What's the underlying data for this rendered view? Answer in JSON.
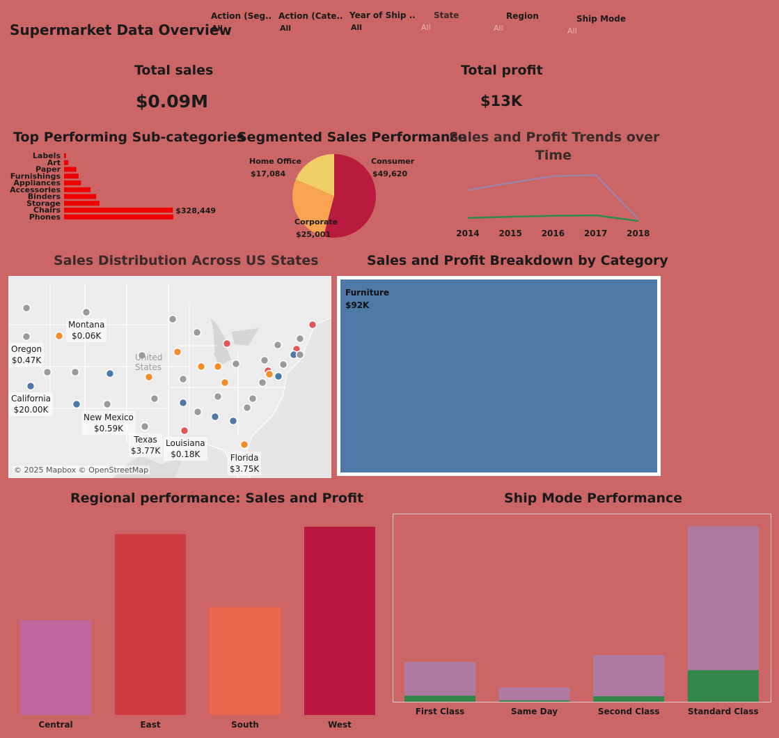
{
  "header": {
    "title": "Supermarket Data Overview"
  },
  "filters": [
    {
      "label": "Action (Seg..",
      "value": "All",
      "dim": false
    },
    {
      "label": "Action (Cate..",
      "value": "All",
      "dim": false
    },
    {
      "label": "Year of Ship ..",
      "value": "All",
      "dim": false
    },
    {
      "label": "State",
      "value": "All",
      "dim": true
    },
    {
      "label": "Region",
      "value": "All",
      "dim": true
    },
    {
      "label": "Ship Mode",
      "value": "All",
      "dim": true
    }
  ],
  "kpis": {
    "sales": {
      "title": "Total sales",
      "value": "$0.09M"
    },
    "profit": {
      "title": "Total profit",
      "value": "$13K"
    }
  },
  "titles": {
    "subcat": "Top Performing Sub-categories",
    "segment": "Segmented Sales Performance",
    "trend_line1": "Sales and Profit Trends over",
    "trend_line2": "Time",
    "map": "Sales Distribution Across US States",
    "treemap": "Sales and  Profit Breakdown by Category",
    "region": "Regional performance: Sales and Profit",
    "shipmode": "Ship Mode Performance"
  },
  "chart_data": [
    {
      "id": "subcat",
      "type": "bar",
      "orientation": "horizontal",
      "categories": [
        "Labels",
        "Art",
        "Paper",
        "Furnishings",
        "Appliances",
        "Accessories",
        "Binders",
        "Storage",
        "Chairs",
        "Phones"
      ],
      "values": [
        6000,
        13000,
        37000,
        44000,
        51000,
        80000,
        97000,
        107000,
        328449,
        330000
      ],
      "data_labels": {
        "Chairs": "$328,449"
      },
      "color": "#ee0000"
    },
    {
      "id": "segment",
      "type": "pie",
      "slices": [
        {
          "name": "Consumer",
          "value": 49620,
          "label": "$49,620",
          "color": "#b91b3e"
        },
        {
          "name": "Corporate",
          "value": 25001,
          "label": "$25,001",
          "color": "#f7a350"
        },
        {
          "name": "Home Office",
          "value": 17084,
          "label": "$17,084",
          "color": "#f1cd66"
        }
      ]
    },
    {
      "id": "trend",
      "type": "line",
      "x": [
        "2014",
        "2015",
        "2016",
        "2017",
        "2018"
      ],
      "series": [
        {
          "values": [
            26000,
            32000,
            37500,
            38500,
            2000
          ],
          "color": "#a083a9"
        },
        {
          "values": [
            3000,
            4000,
            4800,
            5200,
            500
          ],
          "color": "#2e8b45"
        }
      ],
      "ylim": [
        0,
        42000
      ]
    },
    {
      "id": "map",
      "type": "scatter",
      "attribution": "© 2025 Mapbox © OpenStreetMap",
      "country_label": "United States",
      "labels": [
        {
          "name": "Montana",
          "value": "$0.06K"
        },
        {
          "name": "Oregon",
          "value": "$0.47K"
        },
        {
          "name": "California",
          "value": "$20.00K"
        },
        {
          "name": "New Mexico",
          "value": "$0.59K"
        },
        {
          "name": "Texas",
          "value": "$3.77K"
        },
        {
          "name": "Louisiana",
          "value": "$0.18K"
        },
        {
          "name": "Florida",
          "value": "$3.75K"
        }
      ]
    },
    {
      "id": "treemap",
      "type": "table",
      "cells": [
        {
          "name": "Furniture",
          "value": "$92K",
          "color": "#4e79a7"
        }
      ]
    },
    {
      "id": "region",
      "type": "bar",
      "categories": [
        "Central",
        "East",
        "South",
        "West"
      ],
      "values": [
        52000,
        99000,
        59000,
        103000
      ],
      "colors": [
        "#c1679e",
        "#cd3b40",
        "#e8664b",
        "#b8183f"
      ],
      "ylim": [
        0,
        106000
      ]
    },
    {
      "id": "shipmode",
      "type": "bar",
      "stacked_overlay": true,
      "categories": [
        "First Class",
        "Same Day",
        "Second Class",
        "Standard Class"
      ],
      "series": [
        {
          "values": [
            14500,
            5200,
            17000,
            64000
          ],
          "color": "#ae7aa1"
        },
        {
          "values": [
            2200,
            500,
            2000,
            11500
          ],
          "color": "#33874a"
        }
      ],
      "ylim": [
        0,
        67000
      ]
    }
  ]
}
